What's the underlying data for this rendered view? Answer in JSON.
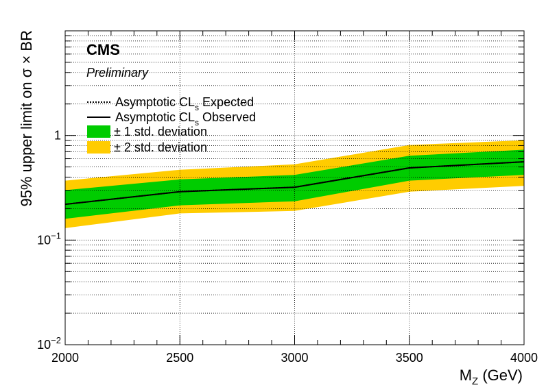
{
  "chart_data": {
    "type": "area",
    "labels": {
      "experiment": "CMS",
      "status": "Preliminary"
    },
    "xlabel": "M_Z (GeV)",
    "xlabel_main": "M",
    "xlabel_sub": "Z",
    "xlabel_rest": " (GeV)",
    "ylabel": "95% upper limit on  σ × BR",
    "xlim": [
      2000,
      4000
    ],
    "ylim": [
      0.01,
      10
    ],
    "yscale": "log",
    "grid": true,
    "x_ticks": [
      "2000",
      "2500",
      "3000",
      "3500",
      "4000"
    ],
    "y_ticks": [
      {
        "value": 0.01,
        "base": "10",
        "exp": "−2"
      },
      {
        "value": 0.1,
        "base": "10",
        "exp": "−1"
      },
      {
        "value": 1,
        "base": "1",
        "exp": ""
      }
    ],
    "x": [
      2000,
      2500,
      3000,
      3500,
      4000
    ],
    "series": [
      {
        "name": "Asymptotic CL_s Expected",
        "name_main": "Asymptotic CL",
        "name_sub": "s",
        "name_rest": " Expected",
        "style": "dotted",
        "color": "#000000",
        "values": [
          0.22,
          0.29,
          0.32,
          0.49,
          0.56
        ]
      },
      {
        "name": "Asymptotic CL_s Observed",
        "name_main": "Asymptotic CL",
        "name_sub": "s",
        "name_rest": " Observed",
        "style": "solid",
        "color": "#000000",
        "values": [
          0.22,
          0.29,
          0.32,
          0.49,
          0.56
        ]
      }
    ],
    "bands": [
      {
        "name": "± 2 std. deviation",
        "color": "#ffcc00",
        "low": [
          0.13,
          0.18,
          0.19,
          0.29,
          0.33
        ],
        "high": [
          0.37,
          0.47,
          0.53,
          0.81,
          0.9
        ]
      },
      {
        "name": "± 1 std. deviation",
        "color": "#00cc00",
        "low": [
          0.16,
          0.215,
          0.235,
          0.37,
          0.42
        ],
        "high": [
          0.3,
          0.38,
          0.42,
          0.64,
          0.73
        ]
      }
    ],
    "legend_position": "top-left"
  }
}
